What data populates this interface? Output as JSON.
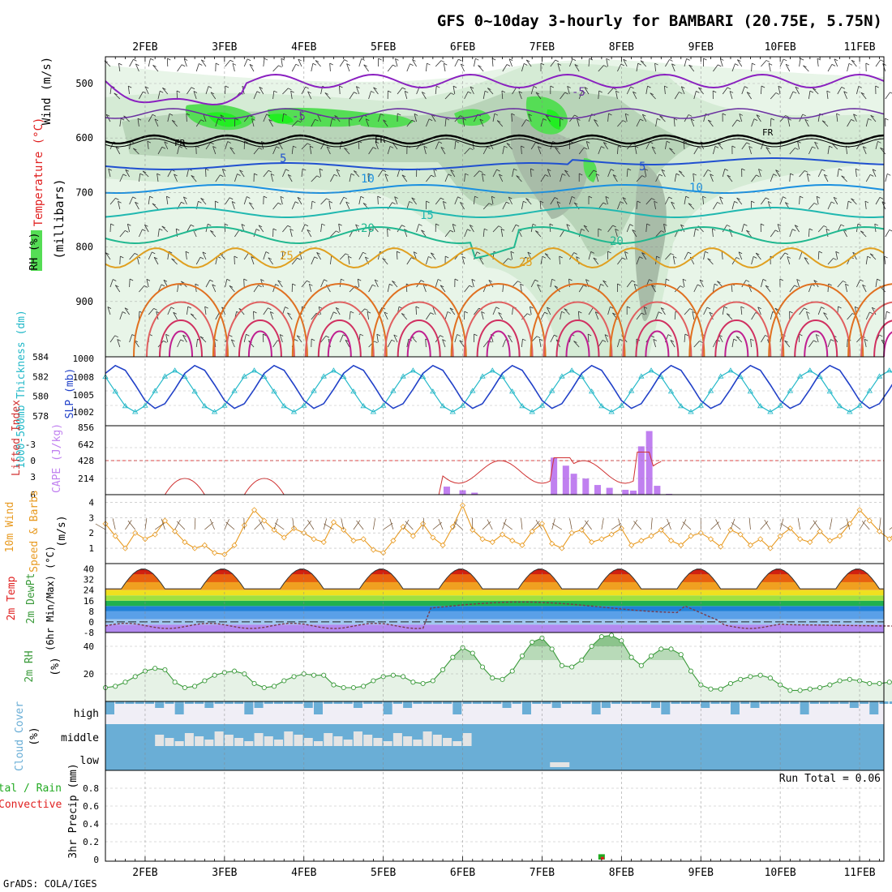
{
  "title": "GFS 0~10day 3-hourly for BAMBARI (20.75E, 5.75N)",
  "footer": "GrADS: COLA/IGES",
  "dates": [
    "2FEB",
    "3FEB",
    "4FEB",
    "5FEB",
    "6FEB",
    "7FEB",
    "8FEB",
    "9FEB",
    "10FEB",
    "11FEB"
  ],
  "colors": {
    "wind_label": "#000000",
    "temp_label": "#e02020",
    "rh_label": "#22aa22",
    "thickness": "#22b8c8",
    "slp": "#2040c8",
    "lifted_index": "#d03030",
    "cape": "#c080f0",
    "wind10m": "#e89a20",
    "rh2m": "#3a9a3a",
    "cloud": "#6aaed6",
    "precip_total": "#22aa22",
    "precip_conv": "#e02020"
  },
  "panels": {
    "upper_air": {
      "ylabel_wind": "Wind (m/s)",
      "ylabel_temp": "Temperature (°C)",
      "ylabel_rh": "RH (%)",
      "ylabel_units": "(millibars)",
      "yticks": [
        "500",
        "600",
        "700",
        "800",
        "900"
      ],
      "freezing_labels": [
        "FR",
        "FR",
        "FR"
      ],
      "temp_labels": [
        "-5",
        "-5",
        "5",
        "5",
        "10",
        "10",
        "15",
        "20",
        "20",
        "25",
        "25"
      ]
    },
    "thickness_slp": {
      "ylabel_thickness": "1000-500mb Thickness (dm)",
      "ylabel_slp": "SLP (mb)",
      "yticks_left": [
        "584",
        "582",
        "580",
        "578"
      ],
      "yticks_right": [
        "1000",
        "1008",
        "1005",
        "1002"
      ]
    },
    "cape_li": {
      "ylabel_li": "Lifted Index",
      "ylabel_cape": "CAPE (J/kg)",
      "yticks_left": [
        "-3",
        "0",
        "3",
        "6"
      ],
      "yticks_right": [
        "856",
        "642",
        "428",
        "214"
      ]
    },
    "wind10m": {
      "ylabel_main": "10m Wind",
      "ylabel_sub": "Speed & Barbs",
      "ylabel_units": "(m/s)",
      "yticks": [
        "4",
        "3",
        "2",
        "1"
      ]
    },
    "temp2m": {
      "ylabel_1": "2m Temp",
      "ylabel_2": "2m DewPt",
      "ylabel_3": "(6hr Min/Max) (°C)",
      "yticks": [
        "40",
        "32",
        "24",
        "16",
        "8",
        "0",
        "-8"
      ]
    },
    "rh2m": {
      "ylabel": "2m RH",
      "ylabel_units": "(%)",
      "yticks": [
        "40",
        "20"
      ]
    },
    "cloud": {
      "ylabel": "Cloud Cover",
      "ylabel_units": "(%)",
      "levels": [
        "high",
        "middle",
        "low"
      ]
    },
    "precip": {
      "ylabel_total": "Total / Rain",
      "ylabel_conv": "Convective",
      "ylabel": "3hr Precip (mm)",
      "yticks": [
        "0.8",
        "0.6",
        "0.4",
        "0.2",
        "0"
      ],
      "run_total": "Run Total = 0.06"
    }
  },
  "chart_data": [
    {
      "type": "line",
      "name": "1000-500mb thickness / SLP",
      "x_unit": "days from 1FEB 12Z",
      "ylim_thickness": [
        577,
        584
      ],
      "ylim_slp": [
        999,
        1011
      ],
      "thickness_daily_range": [
        578.4,
        582.6
      ],
      "slp_daily_range": [
        1002.0,
        1009.5
      ]
    },
    {
      "type": "bar",
      "name": "CAPE",
      "ylim": [
        0,
        856
      ],
      "x": [
        4.3,
        4.5,
        4.65,
        5.65,
        5.8,
        5.9,
        6.05,
        6.2,
        6.35,
        6.55,
        6.65,
        6.75,
        6.85,
        6.95,
        7.1
      ],
      "values": [
        100,
        55,
        25,
        460,
        360,
        260,
        200,
        120,
        85,
        60,
        50,
        600,
        790,
        110,
        10
      ]
    },
    {
      "type": "line",
      "name": "2m RH",
      "ylim": [
        0,
        50
      ],
      "x": [
        0,
        0.125,
        0.25,
        0.375,
        0.5,
        0.625,
        0.75,
        0.875,
        1,
        1.125,
        1.25,
        1.375,
        1.5,
        1.625,
        1.75,
        1.875,
        2,
        2.125,
        2.25,
        2.375,
        2.5,
        2.625,
        2.75,
        2.875,
        3,
        3.125,
        3.25,
        3.375,
        3.5,
        3.625,
        3.75,
        3.875,
        4,
        4.125,
        4.25,
        4.375,
        4.5,
        4.625,
        4.75,
        4.875,
        5,
        5.125,
        5.25,
        5.375,
        5.5,
        5.625,
        5.75,
        5.875,
        6,
        6.125,
        6.25,
        6.375,
        6.5,
        6.625,
        6.75,
        6.875,
        7,
        7.125,
        7.25,
        7.375,
        7.5,
        7.625,
        7.75,
        7.875,
        8,
        8.125,
        8.25,
        8.375,
        8.5,
        8.625,
        8.75,
        8.875,
        9,
        9.125,
        9.25,
        9.375,
        9.5,
        9.625,
        9.75,
        9.875,
        10
      ],
      "values": [
        10,
        11,
        14,
        18,
        22,
        24,
        23,
        14,
        10,
        11,
        15,
        19,
        21,
        22,
        20,
        13,
        10,
        11,
        15,
        18,
        20,
        19,
        19,
        12,
        10,
        10,
        11,
        15,
        18,
        19,
        18,
        14,
        13,
        15,
        23,
        32,
        39,
        35,
        25,
        17,
        16,
        22,
        33,
        43,
        46,
        38,
        26,
        25,
        30,
        40,
        47,
        48,
        44,
        32,
        26,
        33,
        38,
        38,
        34,
        22,
        12,
        9,
        9,
        13,
        16,
        18,
        19,
        17,
        12,
        8,
        8,
        9,
        10,
        12,
        15,
        16,
        15,
        13,
        13,
        14,
        15
      ]
    },
    {
      "type": "line",
      "name": "10m wind speed",
      "ylim": [
        0,
        4.5
      ],
      "values": [
        2.6,
        1.8,
        1.0,
        2.0,
        1.6,
        1.9,
        2.8,
        2.1,
        1.4,
        1.0,
        1.2,
        0.7,
        0.6,
        1.2,
        2.5,
        3.5,
        2.8,
        2.2,
        1.7,
        2.3,
        2.0,
        1.6,
        1.4,
        2.7,
        2.2,
        1.5,
        1.6,
        0.9,
        0.7,
        1.5,
        2.4,
        1.8,
        2.6,
        1.7,
        1.2,
        2.4,
        3.8,
        2.2,
        1.6,
        1.4,
        1.9,
        1.5,
        1.2,
        2.1,
        2.6,
        1.3,
        1.0,
        2.0,
        2.2,
        1.4,
        1.6,
        1.9,
        2.3,
        1.2,
        1.5,
        1.8,
        2.2,
        1.5,
        1.2,
        1.8,
        2.0,
        1.6,
        1.1,
        2.2,
        1.9,
        1.2,
        1.6,
        1.0,
        1.8,
        2.3,
        1.6,
        1.4,
        2.1,
        1.5,
        1.8,
        2.6,
        3.5,
        2.8,
        2.1,
        1.6,
        2.3
      ]
    },
    {
      "type": "line",
      "name": "2m temperature / dewpoint",
      "ylim": [
        -8,
        44
      ],
      "temp_min": 25,
      "temp_max": 40,
      "dewpoint_range": [
        -3,
        15
      ]
    },
    {
      "type": "bar",
      "name": "3hr precip",
      "ylim": [
        0,
        1
      ],
      "x": [
        6.25
      ],
      "values": [
        0.06
      ],
      "convective": [
        0.03
      ]
    }
  ]
}
